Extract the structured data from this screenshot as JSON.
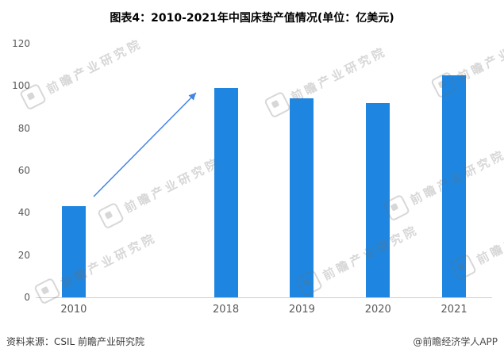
{
  "title": "图表4：2010-2021年中国床垫产值情况(单位：亿美元)",
  "footer": {
    "source": "资料来源：CSIL 前瞻产业研究院",
    "credit": "@前瞻经济学人APP"
  },
  "watermark": {
    "text": "前瞻产业研究院",
    "logo": "qianzhan-logo-icon"
  },
  "colors": {
    "bar": "#1e86e0",
    "arrow": "#4485e3",
    "axis_text": "#595959",
    "axis_line": "#cfcfcf"
  },
  "chart_data": {
    "type": "bar",
    "title": "图表4：2010-2021年中国床垫产值情况(单位：亿美元)",
    "categories": [
      "2010",
      "2018",
      "2019",
      "2020",
      "2021"
    ],
    "values": [
      43,
      99,
      94,
      92,
      105
    ],
    "xlabel": "",
    "ylabel": "",
    "ylim": [
      0,
      120
    ],
    "yticks": [
      0,
      20,
      40,
      60,
      80,
      100,
      120
    ],
    "grid": false,
    "legend": "none",
    "layout": {
      "slot_count": 6,
      "slots": [
        0,
        2,
        3,
        4,
        5
      ]
    },
    "annotation": {
      "type": "trend-arrow",
      "description": "blue arrow rising from top of 2010 bar toward top of 2018 bar"
    }
  }
}
